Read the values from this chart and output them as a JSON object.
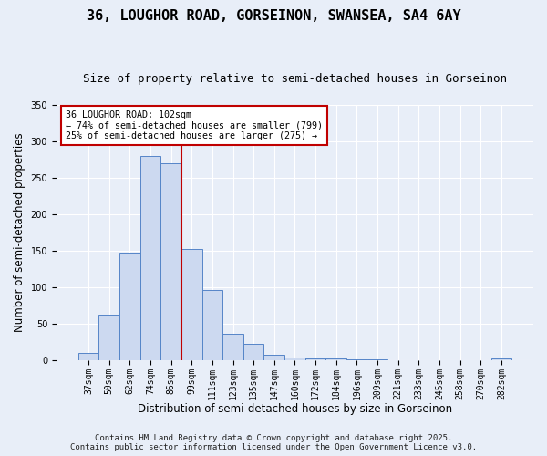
{
  "title": "36, LOUGHOR ROAD, GORSEINON, SWANSEA, SA4 6AY",
  "subtitle": "Size of property relative to semi-detached houses in Gorseinon",
  "xlabel": "Distribution of semi-detached houses by size in Gorseinon",
  "ylabel": "Number of semi-detached properties",
  "categories": [
    "37sqm",
    "50sqm",
    "62sqm",
    "74sqm",
    "86sqm",
    "99sqm",
    "111sqm",
    "123sqm",
    "135sqm",
    "147sqm",
    "160sqm",
    "172sqm",
    "184sqm",
    "196sqm",
    "209sqm",
    "221sqm",
    "233sqm",
    "245sqm",
    "258sqm",
    "270sqm",
    "282sqm"
  ],
  "values": [
    10,
    63,
    148,
    280,
    270,
    152,
    96,
    36,
    22,
    8,
    4,
    2,
    2,
    1,
    1,
    0,
    0,
    0,
    0,
    0,
    2
  ],
  "bar_color": "#ccd9f0",
  "bar_edge_color": "#5585c8",
  "vline_color": "#c00000",
  "annotation_title": "36 LOUGHOR ROAD: 102sqm",
  "annotation_line1": "← 74% of semi-detached houses are smaller (799)",
  "annotation_line2": "25% of semi-detached houses are larger (275) →",
  "annotation_box_facecolor": "#ffffff",
  "annotation_box_edgecolor": "#c00000",
  "ylim": [
    0,
    350
  ],
  "yticks": [
    0,
    50,
    100,
    150,
    200,
    250,
    300,
    350
  ],
  "footer1": "Contains HM Land Registry data © Crown copyright and database right 2025.",
  "footer2": "Contains public sector information licensed under the Open Government Licence v3.0.",
  "bg_color": "#e8eef8",
  "plot_bg_color": "#e8eef8",
  "title_fontsize": 11,
  "subtitle_fontsize": 9,
  "axis_label_fontsize": 8.5,
  "tick_fontsize": 7,
  "footer_fontsize": 6.5,
  "vline_x": 4.5
}
